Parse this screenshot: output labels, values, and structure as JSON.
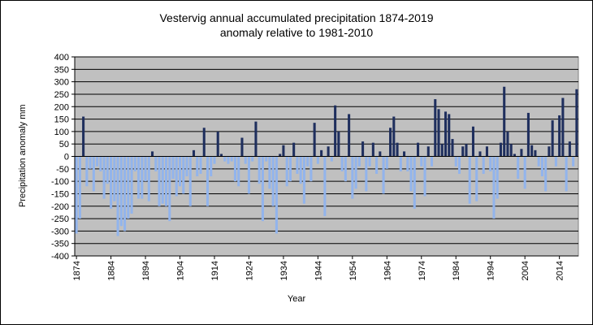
{
  "chart_data": {
    "type": "bar",
    "title_line1": "Vestervig annual  accumulated precipitation 1874-2019",
    "title_line2": "anomaly relative to 1981-2010",
    "xlabel": "Year",
    "ylabel": "Precipitation anomaly mm",
    "ylim": [
      -400,
      400
    ],
    "yticks": [
      400,
      350,
      300,
      250,
      200,
      150,
      100,
      50,
      0,
      -50,
      -100,
      -150,
      -200,
      -250,
      -300,
      -350,
      -400
    ],
    "xtick_labels": [
      "1874",
      "1884",
      "1894",
      "1904",
      "1914",
      "1924",
      "1934",
      "1944",
      "1954",
      "1964",
      "1974",
      "1984",
      "1994",
      "2004",
      "2014"
    ],
    "grid": true,
    "plot_background": "#c0c0c0",
    "positive_color": "#1f2f5e",
    "negative_color": "#92b4ec",
    "x_start": 1874,
    "x_end": 2019,
    "values": [
      -310,
      -250,
      160,
      -120,
      -50,
      -140,
      -40,
      -60,
      -170,
      -110,
      -210,
      -180,
      -320,
      -280,
      -300,
      -250,
      -230,
      -60,
      -170,
      -170,
      -100,
      -180,
      20,
      -60,
      -200,
      -190,
      -200,
      -260,
      -90,
      -160,
      -120,
      -150,
      -80,
      -200,
      25,
      -80,
      -70,
      115,
      -200,
      -80,
      -30,
      100,
      10,
      -20,
      -30,
      -20,
      -100,
      -120,
      75,
      -30,
      -150,
      -20,
      140,
      -110,
      -260,
      -20,
      -130,
      -200,
      -310,
      10,
      45,
      -120,
      -100,
      55,
      -70,
      -110,
      -190,
      -40,
      -100,
      135,
      -30,
      25,
      -240,
      40,
      -20,
      205,
      100,
      -60,
      -100,
      170,
      -170,
      -130,
      -40,
      60,
      -140,
      -40,
      55,
      -70,
      20,
      -150,
      -50,
      115,
      160,
      55,
      -60,
      20,
      -60,
      -140,
      -210,
      55,
      -40,
      -160,
      40,
      -40,
      230,
      190,
      50,
      180,
      170,
      70,
      -40,
      -70,
      40,
      50,
      -190,
      120,
      -180,
      20,
      -70,
      40,
      -60,
      -250,
      -170,
      55,
      280,
      100,
      50,
      10,
      -90,
      30,
      -130,
      175,
      45,
      25,
      -40,
      -80,
      -140,
      40,
      145,
      -40,
      165,
      235,
      -140,
      60,
      -40,
      270
    ]
  }
}
